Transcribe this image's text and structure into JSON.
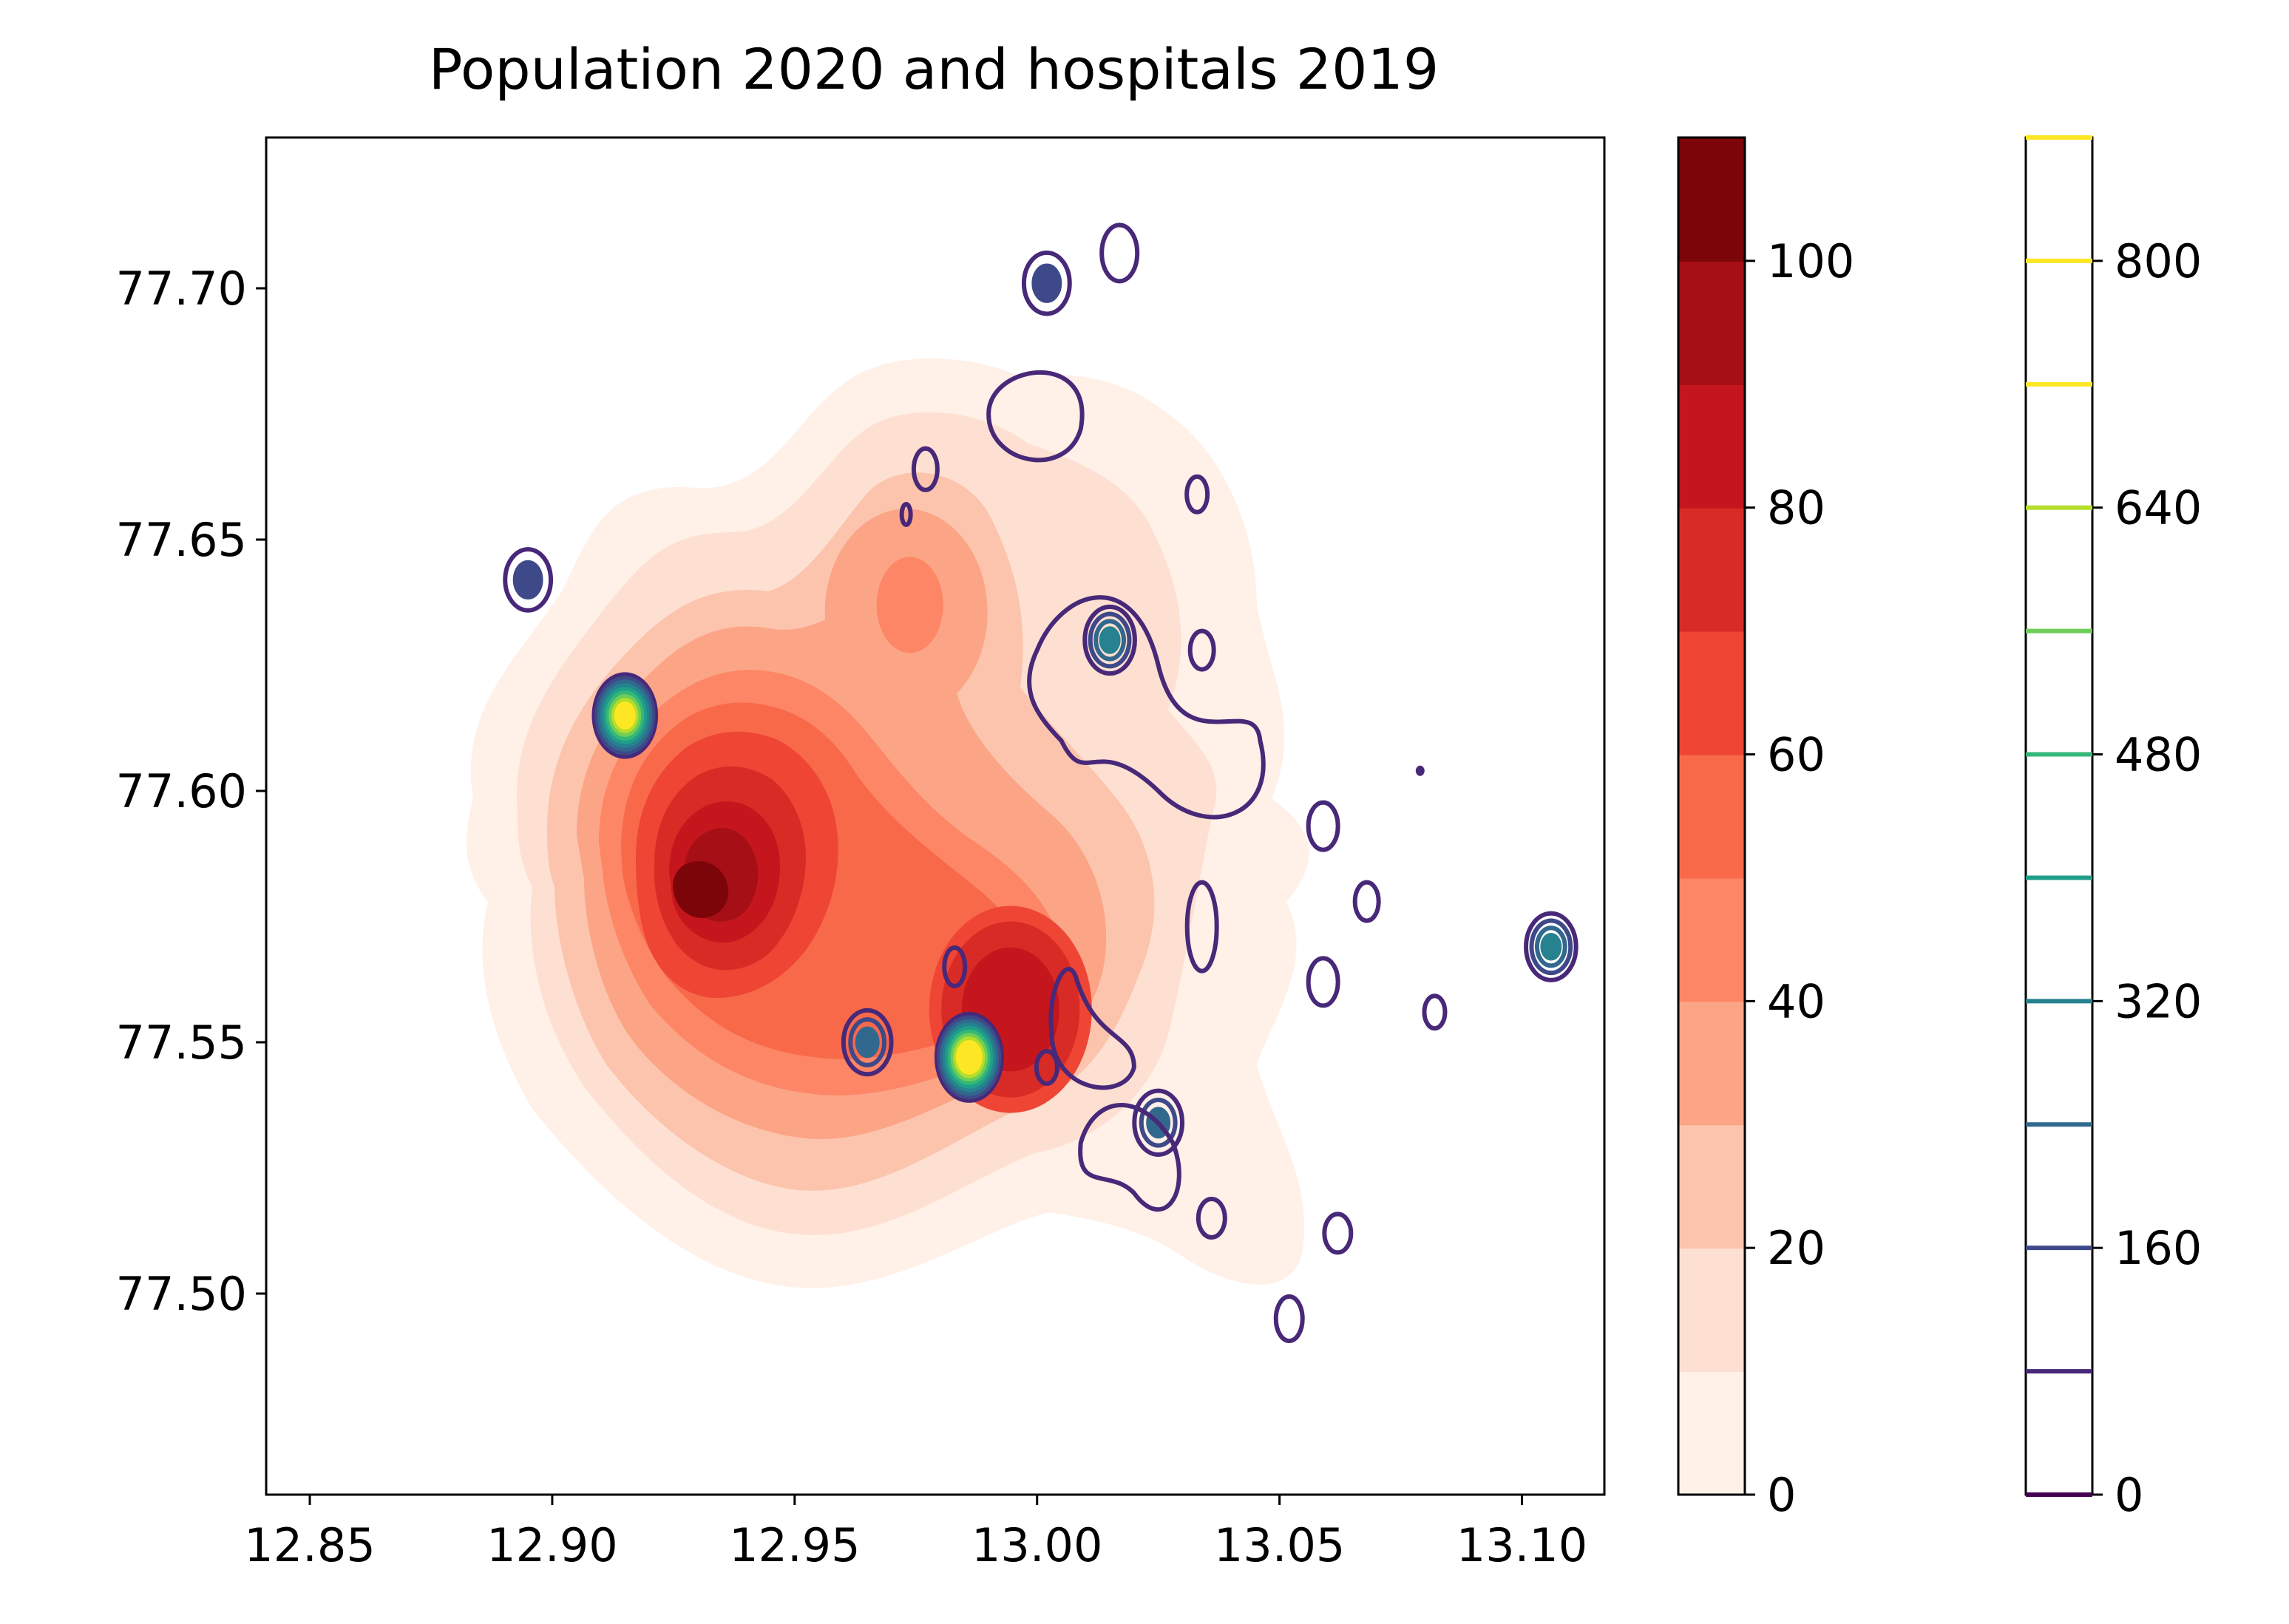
{
  "chart_data": {
    "type": "heatmap",
    "title": "Population 2020 and hospitals 2019",
    "xlabel": "",
    "ylabel": "",
    "xlim": [
      12.841,
      13.117
    ],
    "ylim": [
      77.46,
      77.73
    ],
    "x_ticks": [
      "12.85",
      "12.90",
      "12.95",
      "13.00",
      "13.05",
      "13.10"
    ],
    "x_tick_values": [
      12.85,
      12.9,
      12.95,
      13.0,
      13.05,
      13.1
    ],
    "y_ticks": [
      "77.50",
      "77.55",
      "77.60",
      "77.65",
      "77.70"
    ],
    "y_tick_values": [
      77.5,
      77.55,
      77.6,
      77.65,
      77.7
    ],
    "series": [
      {
        "name": "Population 2020",
        "kind": "filled-density-contour",
        "colormap": "Reds",
        "levels": [
          0,
          10,
          20,
          30,
          40,
          50,
          60,
          70,
          80,
          90,
          100,
          110
        ],
        "level_colors": [
          "#fff0e8",
          "#fee0d2",
          "#fcc4ad",
          "#fca486",
          "#fc8666",
          "#f8694a",
          "#ee4535",
          "#d92b26",
          "#c4161c",
          "#a60f15",
          "#7b0509"
        ],
        "peaks": [
          {
            "x": 12.929,
            "y": 77.58,
            "value": 110
          },
          {
            "x": 12.993,
            "y": 77.558,
            "value": 80
          },
          {
            "x": 12.973,
            "y": 77.637,
            "value": 50
          }
        ]
      },
      {
        "name": "hospitals 2019",
        "kind": "line-density-contour",
        "colormap": "viridis",
        "levels": [
          0,
          80,
          160,
          240,
          320,
          400,
          480,
          560,
          640,
          720,
          800,
          880
        ],
        "hotspots": [
          {
            "x": 12.915,
            "y": 77.615,
            "value": 760
          },
          {
            "x": 12.986,
            "y": 77.547,
            "value": 880
          },
          {
            "x": 12.965,
            "y": 77.55,
            "value": 240
          },
          {
            "x": 12.895,
            "y": 77.642,
            "value": 160
          },
          {
            "x": 13.002,
            "y": 77.701,
            "value": 160
          },
          {
            "x": 13.015,
            "y": 77.63,
            "value": 320
          },
          {
            "x": 13.106,
            "y": 77.569,
            "value": 320
          },
          {
            "x": 13.025,
            "y": 77.534,
            "value": 240
          }
        ]
      }
    ],
    "colorbars": [
      {
        "name": "population",
        "ticks": [
          "0",
          "20",
          "40",
          "60",
          "80",
          "100"
        ],
        "tick_values": [
          0,
          20,
          40,
          60,
          80,
          100
        ],
        "range": [
          0,
          110
        ]
      },
      {
        "name": "hospitals",
        "ticks": [
          "0",
          "160",
          "320",
          "480",
          "640",
          "800"
        ],
        "tick_values": [
          0,
          160,
          320,
          480,
          640,
          800
        ],
        "range": [
          0,
          880
        ],
        "line_colors": [
          "#440154",
          "#482878",
          "#3e4989",
          "#31688e",
          "#26828e",
          "#1f9e89",
          "#35b779",
          "#6ece58",
          "#b5de2b",
          "#fde725"
        ]
      }
    ],
    "grid": false,
    "legend": "none"
  }
}
